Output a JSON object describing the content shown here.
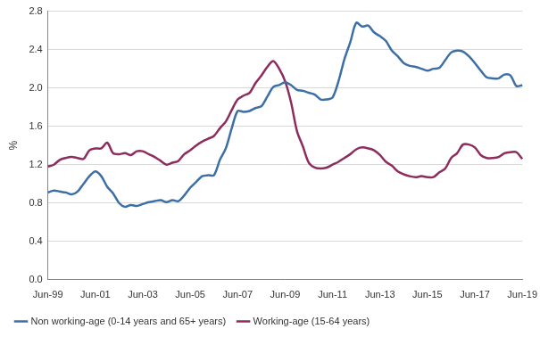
{
  "chart_data": {
    "type": "line",
    "y_label": "%",
    "categories": [
      "Jun-99",
      null,
      null,
      null,
      null,
      null,
      null,
      null,
      "Jun-01",
      null,
      null,
      null,
      null,
      null,
      null,
      null,
      "Jun-03",
      null,
      null,
      null,
      null,
      null,
      null,
      null,
      "Jun-05",
      null,
      null,
      null,
      null,
      null,
      null,
      null,
      "Jun-07",
      null,
      null,
      null,
      null,
      null,
      null,
      null,
      "Jun-09",
      null,
      null,
      null,
      null,
      null,
      null,
      null,
      "Jun-11",
      null,
      null,
      null,
      null,
      null,
      null,
      null,
      "Jun-13",
      null,
      null,
      null,
      null,
      null,
      null,
      null,
      "Jun-15",
      null,
      null,
      null,
      null,
      null,
      null,
      null,
      "Jun-17",
      null,
      null,
      null,
      null,
      null,
      null,
      null,
      "Jun-19"
    ],
    "series": [
      {
        "name": "Non working-age (0-14 years and 65+ years)",
        "color": "#3c6fa6",
        "values": [
          0.91,
          0.93,
          0.92,
          0.91,
          0.89,
          0.92,
          1.0,
          1.08,
          1.13,
          1.08,
          0.97,
          0.9,
          0.8,
          0.76,
          0.78,
          0.77,
          0.79,
          0.81,
          0.82,
          0.83,
          0.81,
          0.83,
          0.82,
          0.88,
          0.96,
          1.02,
          1.08,
          1.09,
          1.09,
          1.25,
          1.37,
          1.58,
          1.76,
          1.75,
          1.76,
          1.79,
          1.81,
          1.91,
          2.01,
          2.03,
          2.06,
          2.03,
          1.98,
          1.97,
          1.95,
          1.93,
          1.88,
          1.88,
          1.9,
          2.07,
          2.3,
          2.48,
          2.68,
          2.64,
          2.65,
          2.58,
          2.54,
          2.49,
          2.39,
          2.33,
          2.26,
          2.23,
          2.22,
          2.2,
          2.18,
          2.2,
          2.21,
          2.29,
          2.37,
          2.39,
          2.38,
          2.33,
          2.26,
          2.18,
          2.11,
          2.1,
          2.1,
          2.14,
          2.13,
          2.02,
          2.03
        ]
      },
      {
        "name": "Working-age (15-64 years)",
        "color": "#8c2d5e",
        "values": [
          1.18,
          1.2,
          1.25,
          1.27,
          1.28,
          1.27,
          1.26,
          1.35,
          1.37,
          1.37,
          1.43,
          1.32,
          1.31,
          1.32,
          1.3,
          1.34,
          1.34,
          1.31,
          1.28,
          1.24,
          1.2,
          1.22,
          1.24,
          1.31,
          1.35,
          1.4,
          1.44,
          1.47,
          1.5,
          1.58,
          1.65,
          1.77,
          1.88,
          1.92,
          1.95,
          2.05,
          2.13,
          2.22,
          2.28,
          2.2,
          2.07,
          1.85,
          1.55,
          1.39,
          1.22,
          1.17,
          1.16,
          1.17,
          1.2,
          1.23,
          1.27,
          1.31,
          1.36,
          1.38,
          1.37,
          1.35,
          1.3,
          1.23,
          1.19,
          1.13,
          1.1,
          1.08,
          1.07,
          1.08,
          1.07,
          1.07,
          1.12,
          1.16,
          1.27,
          1.32,
          1.41,
          1.41,
          1.38,
          1.3,
          1.27,
          1.27,
          1.28,
          1.32,
          1.33,
          1.33,
          1.26
        ]
      }
    ],
    "ylim": [
      0,
      2.8
    ],
    "yticks": [
      {
        "value": 0,
        "label": "0.0"
      },
      0.4,
      0.8,
      1.2,
      1.6,
      {
        "value": 2,
        "label": "2.0"
      },
      2.4,
      2.8
    ],
    "grid": true,
    "legend": "bottom"
  }
}
